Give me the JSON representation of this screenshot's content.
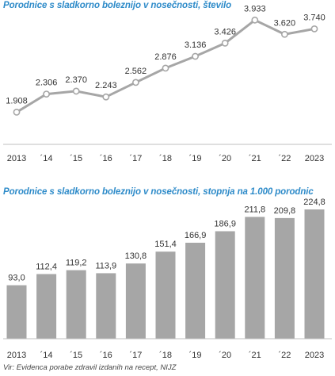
{
  "colors": {
    "title": "#2e8bc9",
    "line": "#a6a6a6",
    "bar": "#a6a6a6",
    "text": "#333333",
    "axis": "#bfbfbf"
  },
  "source": "Vir: Evidenca porabe zdravil izdanih na recept, NIJZ",
  "chart_data": [
    {
      "type": "line",
      "title": "Porodnice s sladkorno boleznijo v nosečnosti, število",
      "categories": [
        "2013",
        "´14",
        "´15",
        "´16",
        "´17",
        "´18",
        "´19",
        "´20",
        "´21",
        "´22",
        "2023"
      ],
      "values": [
        1908,
        2306,
        2370,
        2243,
        2562,
        2876,
        3136,
        3426,
        3933,
        3620,
        3740
      ],
      "labels": [
        "1.908",
        "2.306",
        "2.370",
        "2.243",
        "2.562",
        "2.876",
        "3.136",
        "3.426",
        "3.933",
        "3.620",
        "3.740"
      ],
      "ylim": [
        1200,
        4200
      ],
      "grid": false,
      "markers": true
    },
    {
      "type": "bar",
      "title": "Porodnice s sladkorno boleznijo v nosečnosti, stopnja na 1.000 porodnic",
      "categories": [
        "2013",
        "´14",
        "´15",
        "´16",
        "´17",
        "´18",
        "´19",
        "´20",
        "´21",
        "´22",
        "2023"
      ],
      "values": [
        93.0,
        112.4,
        119.2,
        113.9,
        130.8,
        151.4,
        166.9,
        186.9,
        211.8,
        209.8,
        224.8
      ],
      "labels": [
        "93,0",
        "112,4",
        "119,2",
        "113,9",
        "130,8",
        "151,4",
        "166,9",
        "186,9",
        "211,8",
        "209,8",
        "224,8"
      ],
      "ylim": [
        0,
        240
      ],
      "grid": false
    }
  ]
}
